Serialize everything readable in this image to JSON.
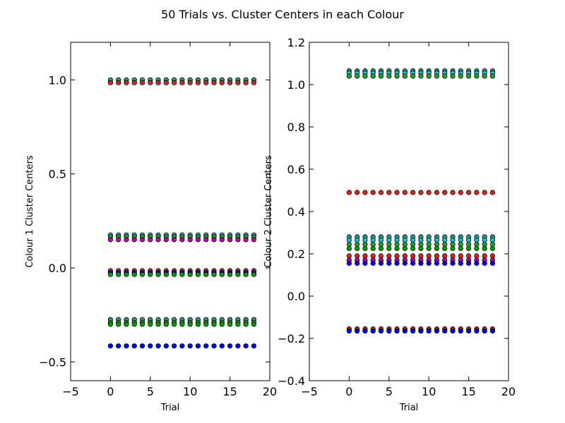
{
  "figure": {
    "title": "50 Trials vs. Cluster Centers in each Colour"
  },
  "chart_data": [
    {
      "type": "scatter",
      "xlabel": "Trial",
      "ylabel": "Colour 1 Cluster Centers",
      "xlim": [
        -5,
        20
      ],
      "ylim": [
        -0.6,
        1.2
      ],
      "xticks": [
        -5,
        0,
        5,
        10,
        15,
        20
      ],
      "xtick_labels": [
        "−5",
        "0",
        "5",
        "10",
        "15",
        "20"
      ],
      "yticks": [
        -0.5,
        0.0,
        0.5,
        1.0
      ],
      "ytick_labels": [
        "−0.5",
        "0.0",
        "0.5",
        "1.0"
      ],
      "grid": false,
      "x": [
        0,
        1,
        2,
        3,
        4,
        5,
        6,
        7,
        8,
        9,
        10,
        11,
        12,
        13,
        14,
        15,
        16,
        17,
        18
      ],
      "series": [
        {
          "color": "#1f9e89",
          "values": [
            1.0,
            1.0,
            1.0,
            1.0,
            1.0,
            1.0,
            1.0,
            1.0,
            1.0,
            1.0,
            1.0,
            1.0,
            1.0,
            1.0,
            1.0,
            1.0,
            1.0,
            1.0,
            1.0
          ]
        },
        {
          "color": "#d62728",
          "values": [
            0.985,
            0.985,
            0.985,
            0.985,
            0.985,
            0.985,
            0.985,
            0.985,
            0.985,
            0.985,
            0.985,
            0.985,
            0.985,
            0.985,
            0.985,
            0.985,
            0.985,
            0.985,
            0.985
          ]
        },
        {
          "color": "#17becf",
          "values": [
            0.175,
            0.175,
            0.175,
            0.175,
            0.175,
            0.175,
            0.175,
            0.175,
            0.175,
            0.175,
            0.175,
            0.175,
            0.175,
            0.175,
            0.175,
            0.175,
            0.175,
            0.175,
            0.175
          ]
        },
        {
          "color": "#2ca02c",
          "values": [
            0.165,
            0.165,
            0.165,
            0.165,
            0.165,
            0.165,
            0.165,
            0.165,
            0.165,
            0.165,
            0.165,
            0.165,
            0.165,
            0.165,
            0.165,
            0.165,
            0.165,
            0.165,
            0.165
          ]
        },
        {
          "color": "#bf00bf",
          "values": [
            0.15,
            0.15,
            0.15,
            0.15,
            0.15,
            0.15,
            0.15,
            0.15,
            0.15,
            0.15,
            0.15,
            0.15,
            0.15,
            0.15,
            0.15,
            0.15,
            0.15,
            0.15,
            0.15
          ]
        },
        {
          "color": "#d62728",
          "values": [
            -0.015,
            -0.015,
            -0.015,
            -0.015,
            -0.015,
            -0.015,
            -0.015,
            -0.015,
            -0.015,
            -0.015,
            -0.015,
            -0.015,
            -0.015,
            -0.015,
            -0.015,
            -0.015,
            -0.015,
            -0.015,
            -0.015
          ]
        },
        {
          "color": "#0000ff",
          "values": [
            -0.025,
            -0.025,
            -0.025,
            -0.025,
            -0.025,
            -0.025,
            -0.025,
            -0.025,
            -0.025,
            -0.025,
            -0.025,
            -0.025,
            -0.025,
            -0.025,
            -0.025,
            -0.025,
            -0.025,
            -0.025,
            -0.025
          ]
        },
        {
          "color": "#00a000",
          "values": [
            -0.035,
            -0.035,
            -0.035,
            -0.035,
            -0.035,
            -0.035,
            -0.035,
            -0.035,
            -0.035,
            -0.035,
            -0.035,
            -0.035,
            -0.035,
            -0.035,
            -0.035,
            -0.035,
            -0.035,
            -0.035,
            -0.035
          ]
        },
        {
          "color": "#1f9e89",
          "values": [
            -0.275,
            -0.275,
            -0.275,
            -0.275,
            -0.275,
            -0.275,
            -0.275,
            -0.275,
            -0.275,
            -0.275,
            -0.275,
            -0.275,
            -0.275,
            -0.275,
            -0.275,
            -0.275,
            -0.275,
            -0.275,
            -0.275
          ]
        },
        {
          "color": "#2ca02c",
          "values": [
            -0.29,
            -0.29,
            -0.29,
            -0.29,
            -0.29,
            -0.29,
            -0.29,
            -0.29,
            -0.29,
            -0.29,
            -0.29,
            -0.29,
            -0.29,
            -0.29,
            -0.29,
            -0.29,
            -0.29,
            -0.29,
            -0.29
          ]
        },
        {
          "color": "#00a000",
          "values": [
            -0.3,
            -0.3,
            -0.3,
            -0.3,
            -0.3,
            -0.3,
            -0.3,
            -0.3,
            -0.3,
            -0.3,
            -0.3,
            -0.3,
            -0.3,
            -0.3,
            -0.3,
            -0.3,
            -0.3,
            -0.3,
            -0.3
          ]
        },
        {
          "color": "#0000ff",
          "values": [
            -0.415,
            -0.415,
            -0.415,
            -0.415,
            -0.415,
            -0.415,
            -0.415,
            -0.415,
            -0.415,
            -0.415,
            -0.415,
            -0.415,
            -0.415,
            -0.415,
            -0.415,
            -0.415,
            -0.415,
            -0.415,
            -0.415
          ]
        }
      ]
    },
    {
      "type": "scatter",
      "xlabel": "Trial",
      "ylabel": "Colour 2 Cluster Centers",
      "xlim": [
        -5,
        20
      ],
      "ylim": [
        -0.4,
        1.2
      ],
      "xticks": [
        -5,
        0,
        5,
        10,
        15,
        20
      ],
      "xtick_labels": [
        "−5",
        "0",
        "5",
        "10",
        "15",
        "20"
      ],
      "yticks": [
        -0.4,
        -0.2,
        0.0,
        0.2,
        0.4,
        0.6,
        0.8,
        1.0,
        1.2
      ],
      "ytick_labels": [
        "−0.4",
        "−0.2",
        "0.0",
        "0.2",
        "0.4",
        "0.6",
        "0.8",
        "1.0",
        "1.2"
      ],
      "grid": false,
      "x": [
        0,
        1,
        2,
        3,
        4,
        5,
        6,
        7,
        8,
        9,
        10,
        11,
        12,
        13,
        14,
        15,
        16,
        17,
        18
      ],
      "series": [
        {
          "color": "#1f9e89",
          "values": [
            1.065,
            1.065,
            1.065,
            1.065,
            1.065,
            1.065,
            1.065,
            1.065,
            1.065,
            1.065,
            1.065,
            1.065,
            1.065,
            1.065,
            1.065,
            1.065,
            1.065,
            1.065,
            1.065
          ]
        },
        {
          "color": "#17becf",
          "values": [
            1.055,
            1.055,
            1.055,
            1.055,
            1.055,
            1.055,
            1.055,
            1.055,
            1.055,
            1.055,
            1.055,
            1.055,
            1.055,
            1.055,
            1.055,
            1.055,
            1.055,
            1.055,
            1.055
          ]
        },
        {
          "color": "#2ca02c",
          "values": [
            1.04,
            1.04,
            1.04,
            1.04,
            1.04,
            1.04,
            1.04,
            1.04,
            1.04,
            1.04,
            1.04,
            1.04,
            1.04,
            1.04,
            1.04,
            1.04,
            1.04,
            1.04,
            1.04
          ]
        },
        {
          "color": "#d62728",
          "values": [
            0.49,
            0.49,
            0.49,
            0.49,
            0.49,
            0.49,
            0.49,
            0.49,
            0.49,
            0.49,
            0.49,
            0.49,
            0.49,
            0.49,
            0.49,
            0.49,
            0.49,
            0.49,
            0.49
          ]
        },
        {
          "color": "#1f9e89",
          "values": [
            0.28,
            0.28,
            0.28,
            0.28,
            0.28,
            0.28,
            0.28,
            0.28,
            0.28,
            0.28,
            0.28,
            0.28,
            0.28,
            0.28,
            0.28,
            0.28,
            0.28,
            0.28,
            0.28
          ]
        },
        {
          "color": "#17becf",
          "values": [
            0.265,
            0.265,
            0.265,
            0.265,
            0.265,
            0.265,
            0.265,
            0.265,
            0.265,
            0.265,
            0.265,
            0.265,
            0.265,
            0.265,
            0.265,
            0.265,
            0.265,
            0.265,
            0.265
          ]
        },
        {
          "color": "#2ca02c",
          "values": [
            0.245,
            0.245,
            0.245,
            0.245,
            0.245,
            0.245,
            0.245,
            0.245,
            0.245,
            0.245,
            0.245,
            0.245,
            0.245,
            0.245,
            0.245,
            0.245,
            0.245,
            0.245,
            0.245
          ]
        },
        {
          "color": "#00a000",
          "values": [
            0.225,
            0.225,
            0.225,
            0.225,
            0.225,
            0.225,
            0.225,
            0.225,
            0.225,
            0.225,
            0.225,
            0.225,
            0.225,
            0.225,
            0.225,
            0.225,
            0.225,
            0.225,
            0.225
          ]
        },
        {
          "color": "#d62728",
          "values": [
            0.19,
            0.19,
            0.19,
            0.19,
            0.19,
            0.19,
            0.19,
            0.19,
            0.19,
            0.19,
            0.19,
            0.19,
            0.19,
            0.19,
            0.19,
            0.19,
            0.19,
            0.19,
            0.19
          ]
        },
        {
          "color": "#bf00bf",
          "values": [
            0.17,
            0.17,
            0.17,
            0.17,
            0.17,
            0.17,
            0.17,
            0.17,
            0.17,
            0.17,
            0.17,
            0.17,
            0.17,
            0.17,
            0.17,
            0.17,
            0.17,
            0.17,
            0.17
          ]
        },
        {
          "color": "#0000ff",
          "values": [
            0.155,
            0.155,
            0.155,
            0.155,
            0.155,
            0.155,
            0.155,
            0.155,
            0.155,
            0.155,
            0.155,
            0.155,
            0.155,
            0.155,
            0.155,
            0.155,
            0.155,
            0.155,
            0.155
          ]
        },
        {
          "color": "#d62728",
          "values": [
            -0.155,
            -0.155,
            -0.155,
            -0.155,
            -0.155,
            -0.155,
            -0.155,
            -0.155,
            -0.155,
            -0.155,
            -0.155,
            -0.155,
            -0.155,
            -0.155,
            -0.155,
            -0.155,
            -0.155,
            -0.155,
            -0.155
          ]
        },
        {
          "color": "#0000ff",
          "values": [
            -0.165,
            -0.165,
            -0.165,
            -0.165,
            -0.165,
            -0.165,
            -0.165,
            -0.165,
            -0.165,
            -0.165,
            -0.165,
            -0.165,
            -0.165,
            -0.165,
            -0.165,
            -0.165,
            -0.165,
            -0.165,
            -0.165
          ]
        }
      ]
    }
  ]
}
